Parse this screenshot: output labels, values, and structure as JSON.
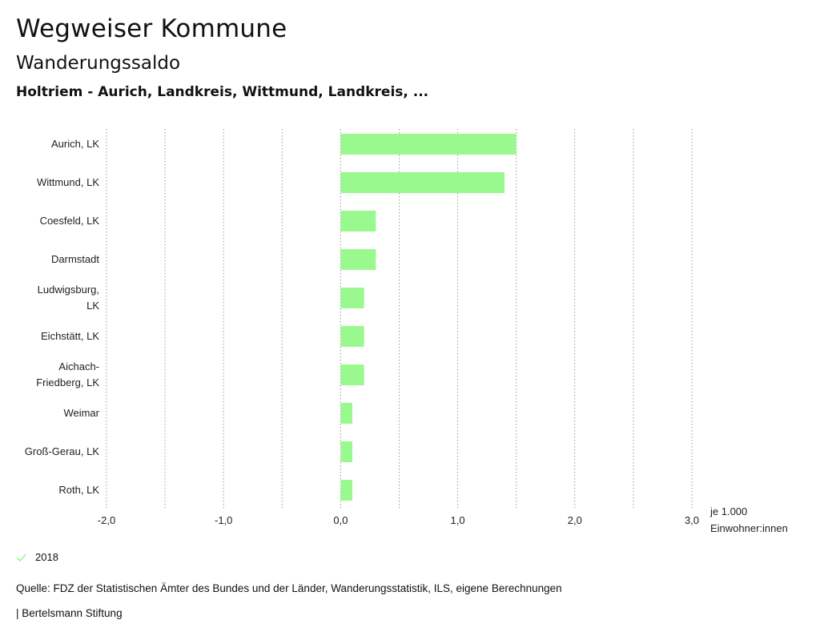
{
  "header": {
    "title": "Wegweiser Kommune",
    "subtitle": "Wanderungssaldo",
    "region": "Holtriem - Aurich, Landkreis, Wittmund, Landkreis, ..."
  },
  "chart_data": {
    "type": "bar",
    "orientation": "horizontal",
    "categories": [
      "Aurich, LK",
      "Wittmund, LK",
      "Coesfeld, LK",
      "Darmstadt",
      "Ludwigsburg, LK",
      "Eichstätt, LK",
      "Aichach-Friedberg, LK",
      "Weimar",
      "Groß-Gerau, LK",
      "Roth, LK"
    ],
    "category_lines": [
      [
        "Aurich, LK"
      ],
      [
        "Wittmund, LK"
      ],
      [
        "Coesfeld, LK"
      ],
      [
        "Darmstadt"
      ],
      [
        "Ludwigsburg,",
        "LK"
      ],
      [
        "Eichstätt, LK"
      ],
      [
        "Aichach-",
        "Friedberg, LK"
      ],
      [
        "Weimar"
      ],
      [
        "Groß-Gerau, LK"
      ],
      [
        "Roth, LK"
      ]
    ],
    "series": [
      {
        "name": "2018",
        "values": [
          1.5,
          1.4,
          0.3,
          0.3,
          0.2,
          0.2,
          0.2,
          0.1,
          0.1,
          0.1
        ],
        "color": "#99f98f"
      }
    ],
    "xlim": [
      -2.0,
      3.0
    ],
    "xticks": [
      -2.0,
      -1.0,
      0.0,
      1.0,
      2.0,
      3.0
    ],
    "xtick_labels": [
      "-2,0",
      "-1,0",
      "0,0",
      "1,0",
      "2,0",
      "3,0"
    ],
    "gridlines": [
      -2.0,
      -1.5,
      -1.0,
      -0.5,
      0.0,
      0.5,
      1.0,
      1.5,
      2.0,
      2.5,
      3.0
    ],
    "unit_lines": [
      "je 1.000",
      "Einwohner:innen"
    ],
    "grid": true
  },
  "legend": {
    "items": [
      {
        "label": "2018",
        "color": "#99f98f",
        "icon": "check-icon"
      }
    ]
  },
  "footer": {
    "source": "Quelle: FDZ der Statistischen Ämter des Bundes und der Länder, Wanderungsstatistik, ILS, eigene Berechnungen",
    "credit": "| Bertelsmann Stiftung"
  }
}
